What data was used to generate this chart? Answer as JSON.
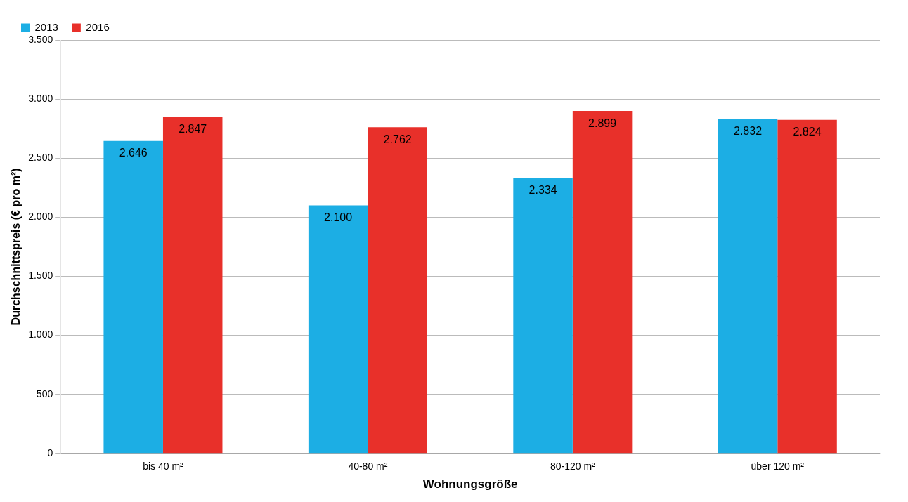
{
  "chart_data": {
    "type": "bar",
    "xlabel": "Wohnungsgröße",
    "ylabel": "Durchschnittspreis (€ pro m²)",
    "categories": [
      "bis 40 m²",
      "40-80 m²",
      "80-120 m²",
      "über 120 m²"
    ],
    "series": [
      {
        "name": "2013",
        "color": "#1caee4",
        "values": [
          2646,
          2100,
          2334,
          2832
        ],
        "value_labels": [
          "2.646",
          "2.100",
          "2.334",
          "2.832"
        ]
      },
      {
        "name": "2016",
        "color": "#e8302a",
        "values": [
          2847,
          2762,
          2899,
          2824
        ],
        "value_labels": [
          "2.847",
          "2.762",
          "2.899",
          "2.824"
        ]
      }
    ],
    "ylim": [
      0,
      3500
    ],
    "yticks": [
      0,
      {
        "value": 500,
        "label": "500"
      },
      {
        "value": 1000,
        "label": "1.000"
      },
      {
        "value": 1500,
        "label": "1.500"
      },
      {
        "value": 2000,
        "label": "2.000"
      },
      {
        "value": 2500,
        "label": "2.500"
      },
      {
        "value": 3000,
        "label": "3.000"
      },
      {
        "value": 3500,
        "label": "3.500"
      }
    ],
    "grid": "y",
    "legend": "top left"
  }
}
